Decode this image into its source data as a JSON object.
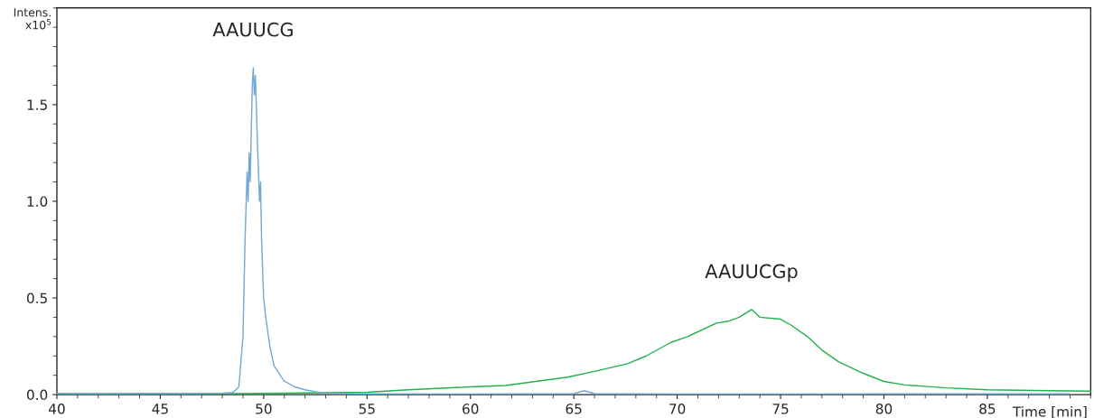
{
  "chart_data": {
    "type": "line",
    "xlabel": "Time [min]",
    "ylabel": "Intens.\nx10$^{5}$",
    "xlim": [
      40,
      90
    ],
    "ylim": [
      0,
      2.0
    ],
    "xticks": [
      40,
      45,
      50,
      55,
      60,
      65,
      70,
      75,
      80,
      85
    ],
    "yticks": [
      {
        "value": 0,
        "label": "0.0"
      },
      {
        "value": 0.5,
        "label": "0.5"
      },
      {
        "value": 1.0,
        "label": "1.0"
      },
      {
        "value": 1.5,
        "label": "1.5"
      }
    ],
    "grid": false,
    "legend": false,
    "marker": "none",
    "line_style": "solid",
    "series": [
      {
        "color": "#6fa8d6",
        "x": [
          40,
          42,
          44,
          46,
          48,
          48.5,
          48.8,
          49.0,
          49.1,
          49.2,
          49.25,
          49.3,
          49.35,
          49.45,
          49.5,
          49.55,
          49.6,
          49.7,
          49.8,
          49.85,
          49.9,
          50.0,
          50.1,
          50.3,
          50.5,
          50.8,
          51.0,
          51.5,
          52.0,
          52.5,
          53.0,
          55.0,
          60.0,
          65.0,
          65.5,
          66.0,
          70.0,
          75.0,
          80.0,
          85.0,
          89.0
        ],
        "values": [
          0.005,
          0.004,
          0.005,
          0.005,
          0.008,
          0.01,
          0.04,
          0.3,
          0.8,
          1.15,
          1.0,
          1.25,
          1.1,
          1.6,
          1.69,
          1.55,
          1.65,
          1.3,
          1.0,
          1.1,
          0.8,
          0.5,
          0.4,
          0.25,
          0.15,
          0.1,
          0.07,
          0.04,
          0.025,
          0.015,
          0.008,
          0.004,
          0.003,
          0.005,
          0.02,
          0.005,
          0.003,
          0.003,
          0.004,
          0.004,
          0.004
        ]
      },
      {
        "color": "#22b14c",
        "x": [
          40,
          45,
          50,
          53,
          55,
          57,
          60,
          61.7,
          64.7,
          66,
          67.6,
          68.5,
          69.7,
          70.5,
          71.9,
          72.5,
          73,
          73.6,
          74,
          75,
          75.5,
          76.3,
          77,
          77.8,
          79,
          80,
          81,
          83,
          85,
          88,
          90
        ],
        "values": [
          0.005,
          0.005,
          0.006,
          0.01,
          0.012,
          0.025,
          0.04,
          0.047,
          0.09,
          0.12,
          0.16,
          0.2,
          0.27,
          0.3,
          0.37,
          0.38,
          0.4,
          0.44,
          0.4,
          0.39,
          0.36,
          0.3,
          0.23,
          0.17,
          0.11,
          0.068,
          0.05,
          0.035,
          0.025,
          0.02,
          0.018
        ]
      }
    ],
    "annotations": [
      "AAUUCG",
      "AAUUCGp"
    ]
  }
}
